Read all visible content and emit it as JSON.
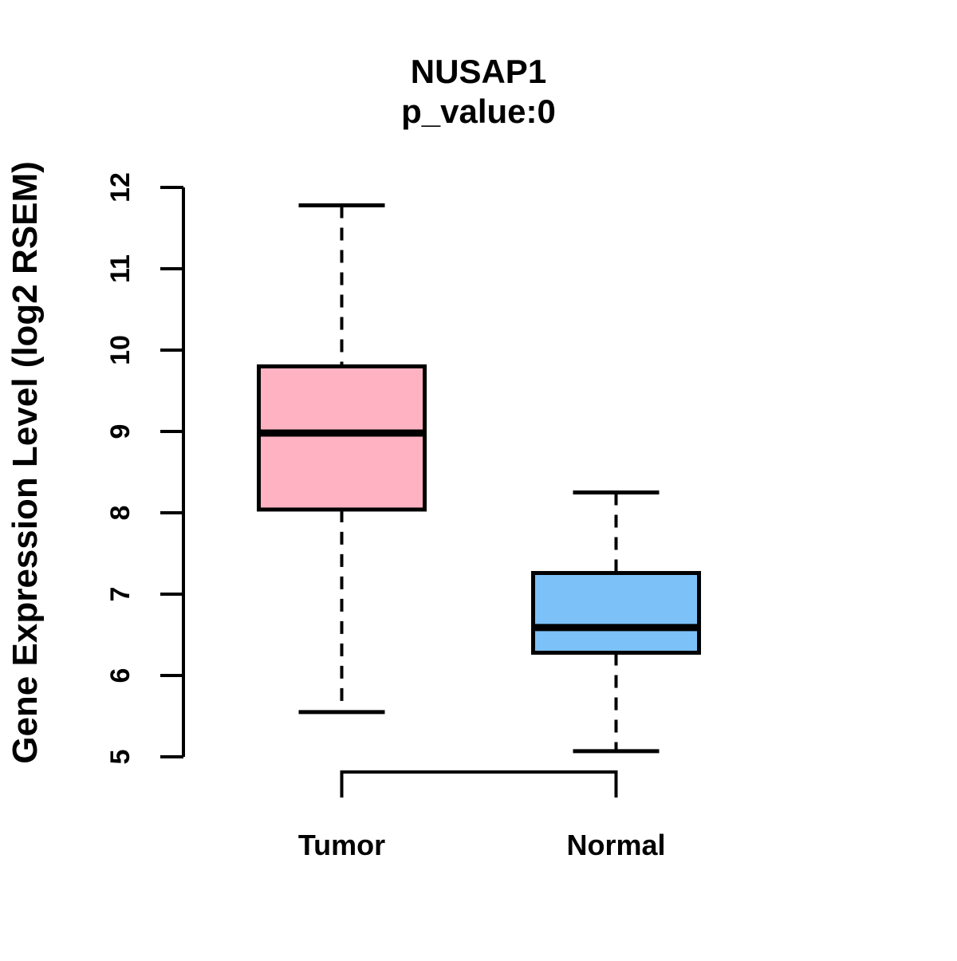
{
  "chart_data": {
    "type": "boxplot",
    "title": "NUSAP1",
    "subtitle": "p_value:0",
    "ylabel": "Gene Expression Level (log2 RSEM)",
    "categories": [
      "Tumor",
      "Normal"
    ],
    "ylim": [
      5,
      12
    ],
    "yticks": [
      5,
      6,
      7,
      8,
      9,
      10,
      11,
      12
    ],
    "grid": "off",
    "legend": "none",
    "whisker_style": "dashed",
    "series": [
      {
        "name": "Tumor",
        "color": "#ffb3c2",
        "whisker_low": 5.55,
        "q1": 8.04,
        "median": 8.98,
        "q3": 9.8,
        "whisker_high": 11.78
      },
      {
        "name": "Normal",
        "color": "#7cc2f9",
        "whisker_low": 5.07,
        "q1": 6.28,
        "median": 6.59,
        "q3": 7.26,
        "whisker_high": 8.25
      }
    ],
    "colors": {
      "box_border": "#000000",
      "median_line": "#000000",
      "axis": "#000000",
      "background": "#ffffff"
    }
  }
}
